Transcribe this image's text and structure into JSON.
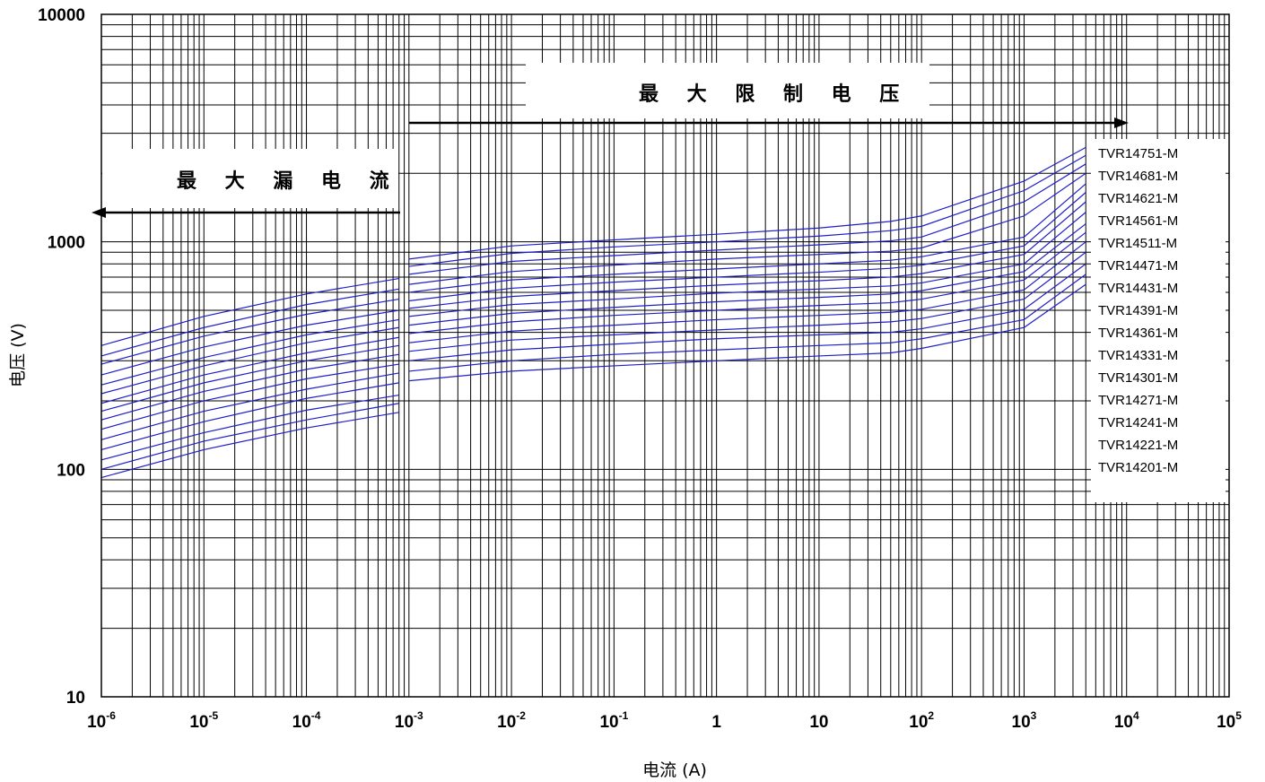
{
  "chart_data": {
    "type": "line",
    "xscale": "log",
    "yscale": "log",
    "xlim": [
      1e-06,
      100000.0
    ],
    "ylim": [
      10,
      10000
    ],
    "xlabel": "电流 (A)",
    "ylabel": "电压 (V)",
    "x_ticks": [
      {
        "base": "10",
        "exp": "-6"
      },
      {
        "base": "10",
        "exp": "-5"
      },
      {
        "base": "10",
        "exp": "-4"
      },
      {
        "base": "10",
        "exp": "-3"
      },
      {
        "base": "10",
        "exp": "-2"
      },
      {
        "base": "10",
        "exp": "-1"
      },
      {
        "base": "1",
        "exp": ""
      },
      {
        "base": "10",
        "exp": ""
      },
      {
        "base": "10",
        "exp": "2"
      },
      {
        "base": "10",
        "exp": "3"
      },
      {
        "base": "10",
        "exp": "4"
      },
      {
        "base": "10",
        "exp": "5"
      }
    ],
    "y_ticks": [
      "10",
      "100",
      "1000",
      "10000"
    ],
    "annotations": {
      "max_clamp_voltage": "最 大 限 制 电 压",
      "max_leakage_current": "最 大 漏 电 流"
    },
    "leakage_x": [
      1e-06,
      1e-05,
      0.0001,
      0.0008
    ],
    "clamp_x": [
      0.001,
      0.01,
      0.1,
      1,
      10,
      50,
      100,
      1000,
      4000
    ],
    "series": [
      {
        "name": "TVR14751-M",
        "leakage": [
          350,
          470,
          590,
          690
        ],
        "clamp": [
          840,
          960,
          1020,
          1080,
          1150,
          1230,
          1300,
          1850,
          2600
        ]
      },
      {
        "name": "TVR14681-M",
        "leakage": [
          315,
          420,
          530,
          620
        ],
        "clamp": [
          780,
          890,
          950,
          1000,
          1060,
          1120,
          1170,
          1680,
          2400
        ]
      },
      {
        "name": "TVR14621-M",
        "leakage": [
          290,
          385,
          480,
          560
        ],
        "clamp": [
          720,
          820,
          870,
          920,
          970,
          1010,
          1050,
          1500,
          2200
        ]
      },
      {
        "name": "TVR14561-M",
        "leakage": [
          260,
          345,
          430,
          500
        ],
        "clamp": [
          650,
          740,
          790,
          840,
          880,
          910,
          940,
          1300,
          2000
        ]
      },
      {
        "name": "TVR14511-M",
        "leakage": [
          235,
          310,
          390,
          455
        ],
        "clamp": [
          600,
          680,
          720,
          760,
          800,
          830,
          860,
          1050,
          1800
        ]
      },
      {
        "name": "TVR14471-M",
        "leakage": [
          215,
          285,
          360,
          420
        ],
        "clamp": [
          550,
          625,
          665,
          700,
          735,
          765,
          790,
          960,
          1650
        ]
      },
      {
        "name": "TVR14431-M",
        "leakage": [
          195,
          260,
          325,
          380
        ],
        "clamp": [
          510,
          575,
          610,
          645,
          675,
          700,
          725,
          880,
          1500
        ]
      },
      {
        "name": "TVR14391-M",
        "leakage": [
          180,
          240,
          300,
          350
        ],
        "clamp": [
          470,
          530,
          560,
          595,
          620,
          640,
          660,
          800,
          1350
        ]
      },
      {
        "name": "TVR14361-M",
        "leakage": [
          165,
          220,
          275,
          320
        ],
        "clamp": [
          430,
          485,
          515,
          545,
          570,
          590,
          610,
          740,
          1200
        ]
      },
      {
        "name": "TVR14331-M",
        "leakage": [
          150,
          200,
          250,
          290
        ],
        "clamp": [
          395,
          445,
          475,
          500,
          525,
          540,
          560,
          680,
          1100
        ]
      },
      {
        "name": "TVR14301-M",
        "leakage": [
          135,
          180,
          225,
          265
        ],
        "clamp": [
          360,
          405,
          430,
          455,
          475,
          490,
          505,
          615,
          1000
        ]
      },
      {
        "name": "TVR14271-M",
        "leakage": [
          122,
          162,
          205,
          240
        ],
        "clamp": [
          330,
          370,
          390,
          410,
          430,
          445,
          460,
          560,
          900
        ]
      },
      {
        "name": "TVR14241-M",
        "leakage": [
          110,
          145,
          182,
          212
        ],
        "clamp": [
          300,
          335,
          355,
          375,
          390,
          400,
          415,
          505,
          800
        ]
      },
      {
        "name": "TVR14221-M",
        "leakage": [
          100,
          133,
          165,
          195
        ],
        "clamp": [
          270,
          300,
          320,
          335,
          350,
          360,
          375,
          455,
          720
        ]
      },
      {
        "name": "TVR14201-M",
        "leakage": [
          92,
          122,
          152,
          178
        ],
        "clamp": [
          245,
          270,
          285,
          300,
          315,
          325,
          340,
          420,
          650
        ]
      }
    ]
  }
}
